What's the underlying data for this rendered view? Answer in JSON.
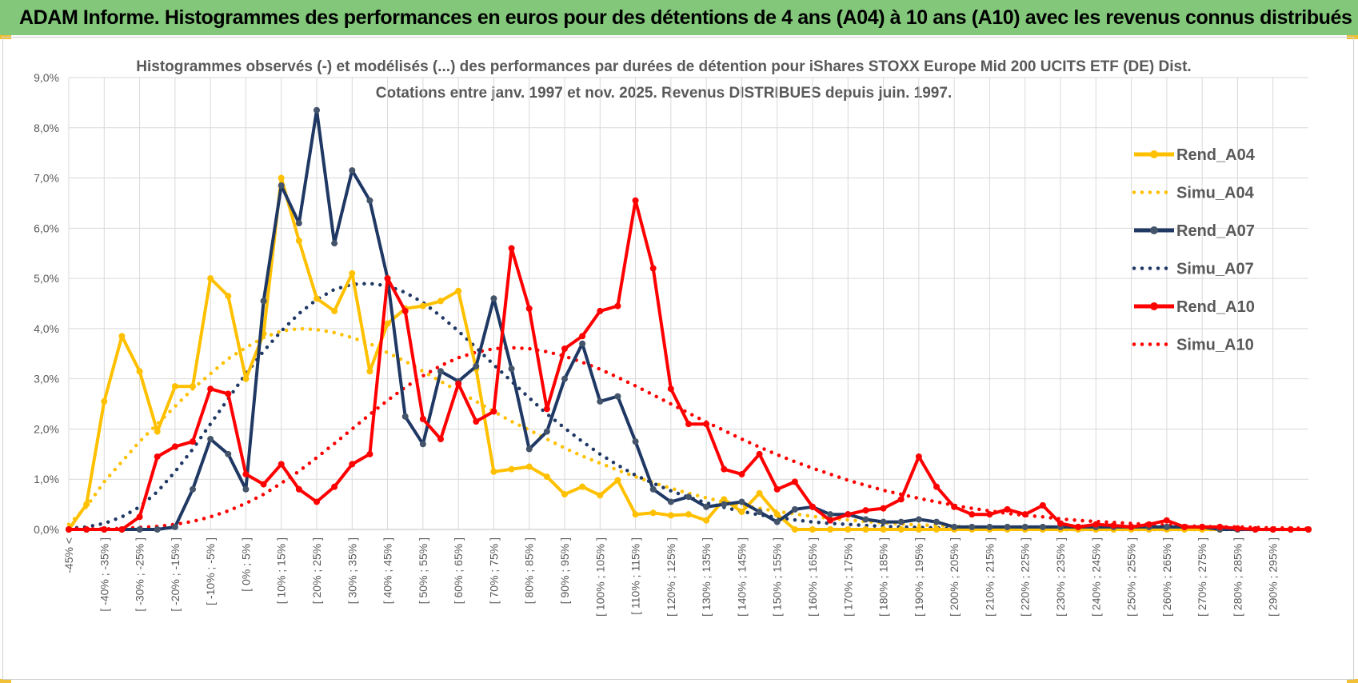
{
  "header": {
    "title": "ADAM Informe. Histogrammes des performances en euros pour des détentions de 4 ans (A04) à 10 ans (A10) avec les revenus connus distribués"
  },
  "colors": {
    "banner": "#82c77a",
    "accent_corner": "#f2c037",
    "grid": "#d9d9d9",
    "text": "#595959"
  },
  "chart_data": {
    "type": "line",
    "title": "Histogrammes observés (-) et modélisés (...) des performances par durées de détention pour iShares STOXX Europe Mid 200 UCITS ETF (DE) Dist.",
    "subtitle": "Cotations entre janv. 1997 et nov. 2025. Revenus DISTRIBUES depuis juin. 1997.",
    "ylim": [
      0,
      9
    ],
    "y_ticks": [
      0,
      1,
      2,
      3,
      4,
      5,
      6,
      7,
      8,
      9
    ],
    "y_tick_labels": [
      "0,0%",
      "1,0%",
      "2,0%",
      "3,0%",
      "4,0%",
      "5,0%",
      "6,0%",
      "7,0%",
      "8,0%",
      "9,0%"
    ],
    "grid": true,
    "legend_position": "right",
    "x_labels": [
      "-45% <",
      "[ -40% ; -35% ]",
      "[ -30% ; -25% ]",
      "[ -20% ; -15% ]",
      "[ -10% ; -5% ]",
      "[ 0% ; 5% ]",
      "[ 10% ; 15% ]",
      "[ 20% ; 25% ]",
      "[ 30% ; 35% ]",
      "[ 40% ; 45% ]",
      "[ 50% ; 55% ]",
      "[ 60% ; 65% ]",
      "[ 70% ; 75% ]",
      "[ 80% ; 85% ]",
      "[ 90% ; 95% ]",
      "[ 100% ; 105% ]",
      "[ 110% ; 115% ]",
      "[ 120% ; 125% ]",
      "[ 130% ; 135% ]",
      "[ 140% ; 145% ]",
      "[ 150% ; 155% ]",
      "[ 160% ; 165% ]",
      "[ 170% ; 175% ]",
      "[ 180% ; 185% ]",
      "[ 190% ; 195% ]",
      "[ 200% ; 205% ]",
      "[ 210% ; 215% ]",
      "[ 220% ; 225% ]",
      "[ 230% ; 235% ]",
      "[ 240% ; 245% ]",
      "[ 250% ; 255% ]",
      "[ 260% ; 265% ]",
      "[ 270% ; 275% ]",
      "[ 280% ; 285% ]",
      "[ 290% ; 295% ]"
    ],
    "series": [
      {
        "name": "Rend_A04",
        "color": "#ffc000",
        "style": "solid",
        "values": [
          0.0,
          0.5,
          2.55,
          3.85,
          3.15,
          1.95,
          2.85,
          2.85,
          5.0,
          4.65,
          3.0,
          3.9,
          7.0,
          5.75,
          4.6,
          4.35,
          5.1,
          3.15,
          4.1,
          4.4,
          4.45,
          4.55,
          4.75,
          3.2,
          1.15,
          1.2,
          1.25,
          1.05,
          0.7,
          0.85,
          0.68,
          0.98,
          0.3,
          0.33,
          0.28,
          0.3,
          0.18,
          0.6,
          0.35,
          0.72,
          0.3,
          0.0,
          0.0,
          0.0,
          0.0,
          0.0,
          0.0,
          0.0,
          0.0,
          0.0,
          0.0,
          0.0,
          0.0,
          0.0,
          0.0,
          0.0,
          0.0,
          0.0,
          0.0,
          0.0,
          0.0,
          0.0,
          0.0,
          0.0,
          0.0,
          0.0,
          0.0,
          0.0,
          0.0,
          0.0,
          0.0
        ]
      },
      {
        "name": "Simu_A04",
        "color": "#ffc000",
        "style": "dotted",
        "values": [
          0.1,
          0.45,
          0.95,
          1.35,
          1.75,
          2.1,
          2.45,
          2.8,
          3.1,
          3.4,
          3.62,
          3.82,
          3.95,
          4.0,
          3.98,
          3.92,
          3.82,
          3.7,
          3.52,
          3.35,
          3.15,
          2.95,
          2.75,
          2.55,
          2.35,
          2.15,
          1.98,
          1.8,
          1.62,
          1.46,
          1.32,
          1.18,
          1.05,
          0.93,
          0.82,
          0.72,
          0.63,
          0.55,
          0.48,
          0.42,
          0.36,
          0.31,
          0.26,
          0.22,
          0.19,
          0.16,
          0.13,
          0.11,
          0.09,
          0.08,
          0.06,
          0.05,
          0.04,
          0.03,
          0.03,
          0.02,
          0.02,
          0.01,
          0.01,
          0.01,
          0.01,
          0.0,
          0.0,
          0.0,
          0.0,
          0.0,
          0.0,
          0.0,
          0.0,
          0.0,
          0.0
        ]
      },
      {
        "name": "Rend_A07",
        "color": "#1f3864",
        "style": "solid",
        "values": [
          0.0,
          0.0,
          0.0,
          0.0,
          0.0,
          0.0,
          0.05,
          0.8,
          1.8,
          1.5,
          0.8,
          4.55,
          6.85,
          6.1,
          8.35,
          5.7,
          7.15,
          6.55,
          5.0,
          2.25,
          1.7,
          3.15,
          2.95,
          3.25,
          4.6,
          3.2,
          1.6,
          1.95,
          3.0,
          3.7,
          2.55,
          2.65,
          1.75,
          0.8,
          0.55,
          0.65,
          0.45,
          0.5,
          0.55,
          0.35,
          0.15,
          0.4,
          0.45,
          0.3,
          0.3,
          0.2,
          0.15,
          0.15,
          0.2,
          0.15,
          0.05,
          0.05,
          0.05,
          0.05,
          0.05,
          0.05,
          0.05,
          0.05,
          0.05,
          0.05,
          0.05,
          0.05,
          0.05,
          0.05,
          0.05,
          0.0,
          0.0,
          0.0,
          0.0,
          0.0,
          0.0
        ]
      },
      {
        "name": "Simu_A07",
        "color": "#1f3864",
        "style": "dotted",
        "values": [
          0.02,
          0.05,
          0.12,
          0.25,
          0.45,
          0.75,
          1.15,
          1.6,
          2.1,
          2.6,
          3.1,
          3.55,
          3.95,
          4.3,
          4.58,
          4.78,
          4.88,
          4.9,
          4.85,
          4.72,
          4.52,
          4.25,
          3.95,
          3.62,
          3.28,
          2.95,
          2.62,
          2.3,
          2.02,
          1.75,
          1.5,
          1.28,
          1.08,
          0.92,
          0.77,
          0.64,
          0.53,
          0.44,
          0.36,
          0.29,
          0.24,
          0.19,
          0.15,
          0.12,
          0.1,
          0.08,
          0.06,
          0.05,
          0.04,
          0.03,
          0.02,
          0.02,
          0.01,
          0.01,
          0.01,
          0.01,
          0.0,
          0.0,
          0.0,
          0.0,
          0.0,
          0.0,
          0.0,
          0.0,
          0.0,
          0.0,
          0.0,
          0.0,
          0.0,
          0.0,
          0.0
        ]
      },
      {
        "name": "Rend_A10",
        "color": "#ff0000",
        "style": "solid",
        "values": [
          0.0,
          0.0,
          0.0,
          0.0,
          0.25,
          1.45,
          1.65,
          1.75,
          2.8,
          2.7,
          1.1,
          0.9,
          1.3,
          0.8,
          0.55,
          0.85,
          1.3,
          1.5,
          5.0,
          4.35,
          2.2,
          1.8,
          2.9,
          2.15,
          2.35,
          5.6,
          4.4,
          2.4,
          3.6,
          3.85,
          4.35,
          4.45,
          6.55,
          5.2,
          2.8,
          2.1,
          2.1,
          1.2,
          1.1,
          1.5,
          0.8,
          0.95,
          0.45,
          0.18,
          0.3,
          0.38,
          0.42,
          0.6,
          1.45,
          0.85,
          0.45,
          0.3,
          0.3,
          0.4,
          0.3,
          0.48,
          0.12,
          0.05,
          0.1,
          0.08,
          0.05,
          0.1,
          0.18,
          0.05,
          0.05,
          0.05,
          0.02,
          0.0,
          0.0,
          0.0,
          0.0
        ]
      },
      {
        "name": "Simu_A10",
        "color": "#ff0000",
        "style": "dotted",
        "values": [
          0.01,
          0.01,
          0.01,
          0.02,
          0.04,
          0.06,
          0.1,
          0.16,
          0.25,
          0.37,
          0.52,
          0.7,
          0.92,
          1.16,
          1.43,
          1.71,
          2.0,
          2.29,
          2.57,
          2.83,
          3.06,
          3.26,
          3.42,
          3.53,
          3.6,
          3.62,
          3.6,
          3.54,
          3.45,
          3.33,
          3.19,
          3.03,
          2.86,
          2.68,
          2.5,
          2.32,
          2.14,
          1.97,
          1.8,
          1.64,
          1.49,
          1.35,
          1.22,
          1.1,
          0.98,
          0.88,
          0.78,
          0.7,
          0.62,
          0.55,
          0.48,
          0.42,
          0.37,
          0.32,
          0.28,
          0.25,
          0.21,
          0.18,
          0.16,
          0.14,
          0.12,
          0.1,
          0.09,
          0.07,
          0.06,
          0.05,
          0.05,
          0.04,
          0.03,
          0.03,
          0.02
        ]
      }
    ]
  }
}
